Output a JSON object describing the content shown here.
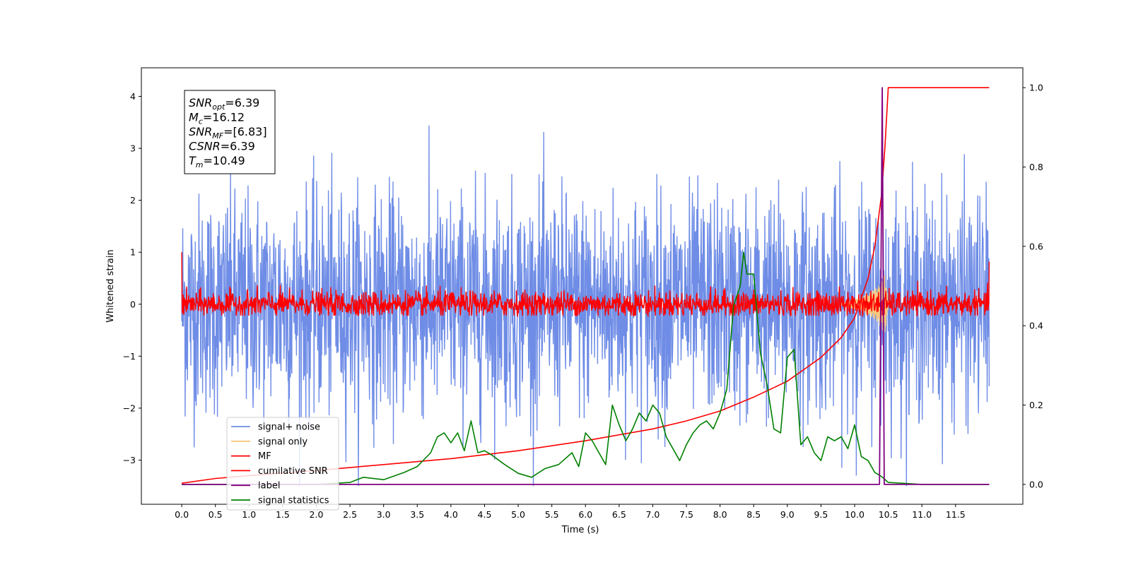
{
  "chart_data": {
    "type": "line",
    "xlabel": "Time (s)",
    "ylabel": "Whitened strain",
    "xlim": [
      -0.6,
      12.5
    ],
    "ylim": [
      -3.85,
      4.55
    ],
    "y2lim": [
      -0.05,
      1.05
    ],
    "x_ticks": [
      "0.0",
      "0.5",
      "1.0",
      "1.5",
      "2.0",
      "2.5",
      "3.0",
      "3.5",
      "4.0",
      "4.5",
      "5.0",
      "5.5",
      "6.0",
      "6.5",
      "7.0",
      "7.5",
      "8.0",
      "8.5",
      "9.0",
      "9.5",
      "10.0",
      "10.5",
      "11.0",
      "11.5"
    ],
    "y_ticks": [
      "−3",
      "−2",
      "−1",
      "0",
      "1",
      "2",
      "3",
      "4"
    ],
    "y2_ticks": [
      "0.0",
      "0.2",
      "0.4",
      "0.6",
      "0.8",
      "1.0"
    ],
    "stats_box": {
      "lines": [
        {
          "base": "SNR",
          "sub": "opt",
          "value": "=6.39"
        },
        {
          "base": "M",
          "sub": "c",
          "value": "=16.12"
        },
        {
          "base": "SNR",
          "sub": "MF",
          "value": "=[6.83]"
        },
        {
          "base": "CSNR",
          "sub": "",
          "value": "=6.39"
        },
        {
          "base": "T",
          "sub": "m",
          "value": "=10.49"
        }
      ]
    },
    "colors": {
      "signal_noise": "#6f8de6",
      "signal_only": "#f5c77e",
      "mf": "#ff0000",
      "cumulative_snr": "#ff0000",
      "label": "#800080",
      "signal_statistics": "#008000"
    },
    "legend": {
      "placement": "lower-left",
      "entries": [
        {
          "name": "signal+ noise",
          "color": "#6f8de6"
        },
        {
          "name": "signal only",
          "color": "#f5c77e"
        },
        {
          "name": "MF",
          "color": "#ff0000"
        },
        {
          "name": "cumilative SNR",
          "color": "#ff0000"
        },
        {
          "name": "label",
          "color": "#800080"
        },
        {
          "name": "signal statistics",
          "color": "#008000"
        }
      ]
    },
    "series": [
      {
        "name": "signal+ noise",
        "axis": "left",
        "x_range": [
          0.0,
          12.0
        ],
        "mean": 0.0,
        "std": 1.0,
        "peak_min": -3.5,
        "peak_max": 4.15
      },
      {
        "name": "signal only",
        "axis": "left",
        "x": [
          9.8,
          10.0,
          10.2,
          10.35,
          10.45,
          10.5
        ],
        "amplitude": [
          0.02,
          0.1,
          0.2,
          0.35,
          0.6,
          0.05
        ]
      },
      {
        "name": "MF",
        "axis": "left",
        "x_range": [
          0.0,
          12.0
        ],
        "mean": 0.0,
        "std": 0.18,
        "start_value": 1.0,
        "end_value": 0.82
      },
      {
        "name": "cumilative SNR",
        "axis": "right",
        "x": [
          0.0,
          0.5,
          1.0,
          2.0,
          3.0,
          4.0,
          5.0,
          6.0,
          7.0,
          7.5,
          8.0,
          8.5,
          9.0,
          9.5,
          9.8,
          10.0,
          10.2,
          10.3,
          10.4,
          10.45,
          10.5,
          12.0
        ],
        "y": [
          0.003,
          0.015,
          0.022,
          0.035,
          0.05,
          0.065,
          0.085,
          0.11,
          0.14,
          0.16,
          0.185,
          0.22,
          0.26,
          0.32,
          0.37,
          0.42,
          0.52,
          0.6,
          0.73,
          0.85,
          1.0,
          1.0
        ]
      },
      {
        "name": "label",
        "axis": "right",
        "x": [
          0.0,
          10.37,
          10.41,
          10.44,
          12.0
        ],
        "y": [
          0.0,
          0.0,
          1.0,
          0.0,
          0.0
        ]
      },
      {
        "name": "signal statistics",
        "axis": "right",
        "x": [
          0.0,
          2.0,
          2.5,
          2.7,
          3.0,
          3.3,
          3.5,
          3.7,
          3.8,
          3.9,
          4.0,
          4.1,
          4.2,
          4.3,
          4.4,
          4.5,
          4.6,
          4.8,
          5.0,
          5.2,
          5.4,
          5.6,
          5.8,
          5.9,
          6.0,
          6.1,
          6.2,
          6.3,
          6.4,
          6.5,
          6.6,
          6.7,
          6.8,
          6.9,
          7.0,
          7.1,
          7.2,
          7.3,
          7.4,
          7.5,
          7.6,
          7.7,
          7.8,
          7.9,
          8.0,
          8.1,
          8.2,
          8.3,
          8.35,
          8.4,
          8.5,
          8.6,
          8.7,
          8.8,
          8.9,
          9.0,
          9.1,
          9.2,
          9.3,
          9.4,
          9.5,
          9.6,
          9.7,
          9.8,
          9.9,
          10.0,
          10.1,
          10.2,
          10.3,
          10.4,
          10.5,
          10.7,
          11.0,
          12.0
        ],
        "y": [
          0.0,
          0.0,
          0.005,
          0.018,
          0.012,
          0.03,
          0.045,
          0.08,
          0.12,
          0.13,
          0.105,
          0.13,
          0.085,
          0.16,
          0.08,
          0.085,
          0.075,
          0.05,
          0.028,
          0.018,
          0.04,
          0.05,
          0.08,
          0.045,
          0.13,
          0.11,
          0.08,
          0.05,
          0.2,
          0.15,
          0.11,
          0.14,
          0.18,
          0.16,
          0.2,
          0.18,
          0.12,
          0.09,
          0.06,
          0.1,
          0.13,
          0.15,
          0.16,
          0.14,
          0.18,
          0.24,
          0.45,
          0.5,
          0.585,
          0.53,
          0.53,
          0.33,
          0.25,
          0.14,
          0.13,
          0.32,
          0.34,
          0.1,
          0.12,
          0.08,
          0.06,
          0.12,
          0.11,
          0.12,
          0.09,
          0.15,
          0.07,
          0.06,
          0.03,
          0.02,
          0.005,
          0.003,
          0.0,
          0.0
        ]
      }
    ]
  }
}
